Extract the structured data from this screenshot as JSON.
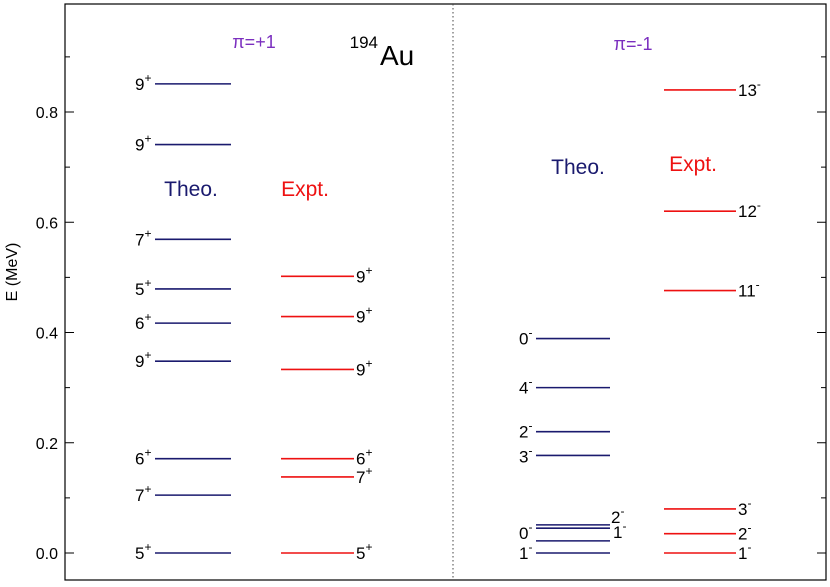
{
  "chart_data": {
    "type": "level-scheme",
    "nucleus": {
      "mass": "194",
      "symbol": "Au"
    },
    "ylabel": "E (MeV)",
    "ylim": [
      -0.05,
      1.0
    ],
    "yticks": [
      {
        "value": 0.0,
        "label": "0.0"
      },
      {
        "value": 0.2,
        "label": "0.2"
      },
      {
        "value": 0.4,
        "label": "0.4"
      },
      {
        "value": 0.6,
        "label": "0.6"
      },
      {
        "value": 0.8,
        "label": "0.8"
      }
    ],
    "panels": [
      {
        "parity_label": "π=+1",
        "theo_label": "Theo.",
        "expt_label": "Expt.",
        "theo_levels": [
          {
            "energy": 0.0,
            "spin": "5",
            "parity": "+"
          },
          {
            "energy": 0.105,
            "spin": "7",
            "parity": "+"
          },
          {
            "energy": 0.171,
            "spin": "6",
            "parity": "+"
          },
          {
            "energy": 0.348,
            "spin": "9",
            "parity": "+"
          },
          {
            "energy": 0.417,
            "spin": "6",
            "parity": "+"
          },
          {
            "energy": 0.479,
            "spin": "5",
            "parity": "+"
          },
          {
            "energy": 0.569,
            "spin": "7",
            "parity": "+"
          },
          {
            "energy": 0.741,
            "spin": "9",
            "parity": "+"
          },
          {
            "energy": 0.851,
            "spin": "9",
            "parity": "+"
          }
        ],
        "expt_levels": [
          {
            "energy": 0.0,
            "spin": "5",
            "parity": "+"
          },
          {
            "energy": 0.138,
            "spin": "7",
            "parity": "+"
          },
          {
            "energy": 0.171,
            "spin": "6",
            "parity": "+"
          },
          {
            "energy": 0.333,
            "spin": "9",
            "parity": "+"
          },
          {
            "energy": 0.429,
            "spin": "9",
            "parity": "+"
          },
          {
            "energy": 0.502,
            "spin": "9",
            "parity": "+"
          }
        ]
      },
      {
        "parity_label": "π=-1",
        "theo_label": "Theo.",
        "expt_label": "Expt.",
        "theo_levels": [
          {
            "energy": 0.0,
            "spin": "1",
            "parity": "-"
          },
          {
            "energy": 0.022,
            "spin": "0",
            "parity": "-"
          },
          {
            "energy": 0.045,
            "spin": "1",
            "parity": "-"
          },
          {
            "energy": 0.051,
            "spin": "2",
            "parity": "-"
          },
          {
            "energy": 0.177,
            "spin": "3",
            "parity": "-"
          },
          {
            "energy": 0.22,
            "spin": "2",
            "parity": "-"
          },
          {
            "energy": 0.3,
            "spin": "4",
            "parity": "-"
          },
          {
            "energy": 0.389,
            "spin": "0",
            "parity": "-"
          }
        ],
        "expt_levels": [
          {
            "energy": 0.0,
            "spin": "1",
            "parity": "-"
          },
          {
            "energy": 0.035,
            "spin": "2",
            "parity": "-"
          },
          {
            "energy": 0.08,
            "spin": "3",
            "parity": "-"
          },
          {
            "energy": 0.476,
            "spin": "11",
            "parity": "-"
          },
          {
            "energy": 0.62,
            "spin": "12",
            "parity": "-"
          },
          {
            "energy": 0.84,
            "spin": "13",
            "parity": "-"
          }
        ]
      }
    ],
    "colors": {
      "theo": "#1a1a6e",
      "expt": "#ee1111",
      "parity_label": "#7b2fbf",
      "axis": "#000000"
    }
  }
}
